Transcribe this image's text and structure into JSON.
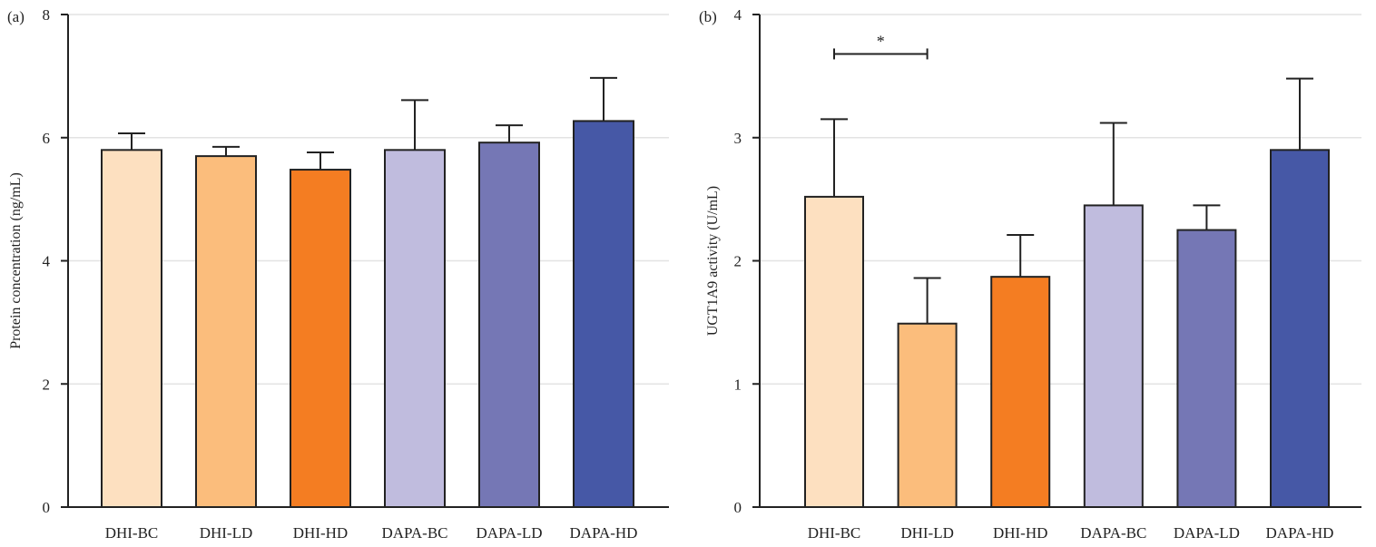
{
  "chart_data": [
    {
      "type": "bar",
      "panel_label": "(a)",
      "ylabel": "Protein concentration (ng/mL)",
      "xlabel": "",
      "ylim": [
        0,
        8
      ],
      "yticks": [
        0,
        2,
        4,
        6,
        8
      ],
      "grid": true,
      "categories": [
        "DHI-BC",
        "DHI-LD",
        "DHI-HD",
        "DAPA-BC",
        "DAPA-LD",
        "DAPA-HD"
      ],
      "values": [
        5.8,
        5.7,
        5.48,
        5.8,
        5.92,
        6.27
      ],
      "error_upper": [
        6.07,
        5.85,
        5.76,
        6.61,
        6.2,
        6.97
      ],
      "colors": [
        "#fde0c0",
        "#fbbd7c",
        "#f47d22",
        "#c0bcde",
        "#7577b5",
        "#4658a6"
      ],
      "significance": []
    },
    {
      "type": "bar",
      "panel_label": "(b)",
      "ylabel": "UGT1A9 activity (U/mL)",
      "xlabel": "",
      "ylim": [
        0,
        4
      ],
      "yticks": [
        0,
        1,
        2,
        3,
        4
      ],
      "grid": true,
      "categories": [
        "DHI-BC",
        "DHI-LD",
        "DHI-HD",
        "DAPA-BC",
        "DAPA-LD",
        "DAPA-HD"
      ],
      "values": [
        2.52,
        1.49,
        1.87,
        2.45,
        2.25,
        2.9
      ],
      "error_upper": [
        3.15,
        1.86,
        2.21,
        3.12,
        2.45,
        3.48
      ],
      "colors": [
        "#fde0c0",
        "#fbbd7c",
        "#f47d22",
        "#c0bcde",
        "#7577b5",
        "#4658a6"
      ],
      "significance": [
        {
          "from": "DHI-BC",
          "to": "DHI-LD",
          "label": "*",
          "y": 3.68
        }
      ]
    }
  ]
}
